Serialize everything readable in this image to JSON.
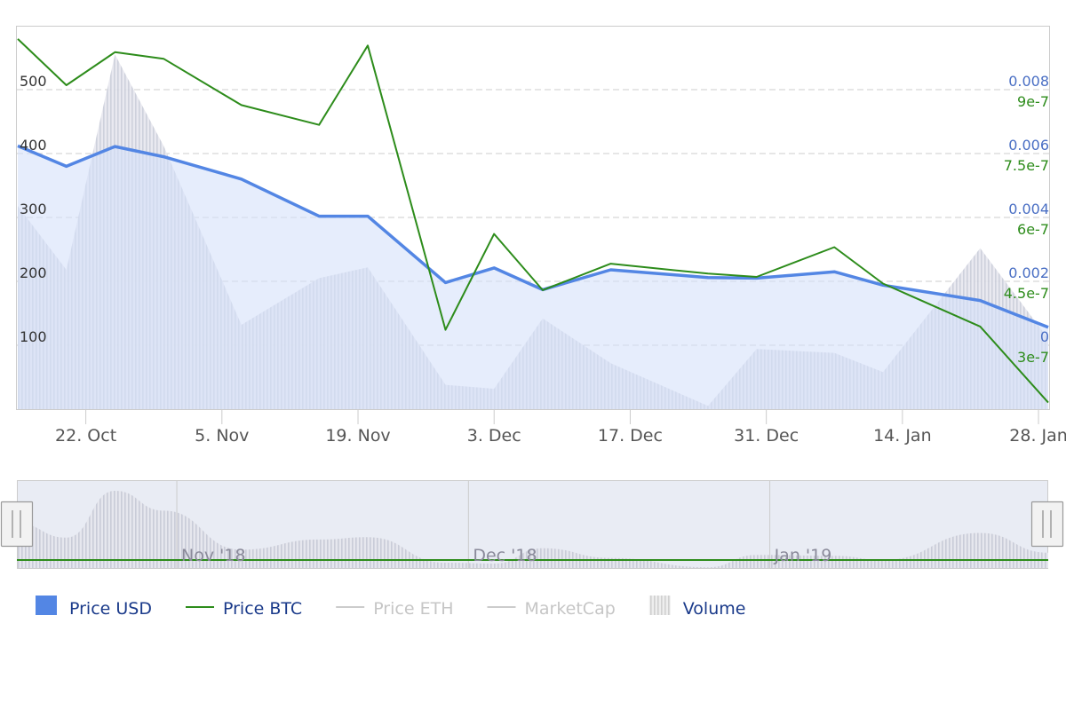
{
  "chart_data": {
    "type": "line",
    "x": [
      "2018-10-15",
      "2018-10-20",
      "2018-10-25",
      "2018-10-30",
      "2018-11-07",
      "2018-11-15",
      "2018-11-20",
      "2018-11-28",
      "2018-12-03",
      "2018-12-08",
      "2018-12-15",
      "2018-12-25",
      "2018-12-30",
      "2019-01-07",
      "2019-01-12",
      "2019-01-22",
      "2019-01-29"
    ],
    "series": [
      {
        "name": "Price USD",
        "type": "area",
        "axis": "usd",
        "color": "#5386e4",
        "values": [
          412,
          380,
          411,
          395,
          360,
          302,
          302,
          198,
          221,
          187,
          218,
          206,
          205,
          215,
          194,
          170,
          128
        ]
      },
      {
        "name": "Price BTC",
        "type": "line",
        "axis": "btc",
        "color": "#2d8c1b",
        "values": [
          1.06e-06,
          9.9e-07,
          1.04e-06,
          1.03e-06,
          9.6e-07,
          9.3e-07,
          1.05e-06,
          6.2e-07,
          7.65e-07,
          6.8e-07,
          7.2e-07,
          7.05e-07,
          7e-07,
          7.45e-07,
          6.9e-07,
          6.25e-07,
          5.1e-07
        ]
      },
      {
        "name": "Volume",
        "type": "area",
        "axis": "volume",
        "color": "#d8dbe4",
        "values": [
          318,
          218,
          555,
          412,
          132,
          205,
          222,
          38,
          32,
          142,
          72,
          5,
          94,
          88,
          58,
          252,
          110
        ]
      }
    ],
    "axes": {
      "usd": {
        "ticks": [
          "100",
          "200",
          "300",
          "400",
          "500"
        ],
        "range": [
          0,
          600
        ]
      },
      "usd_btc_ratio": {
        "ticks": [
          "0",
          "0.002",
          "0.004",
          "0.006",
          "0.008"
        ],
        "range": [
          -0.002,
          0.01
        ],
        "color": "#4a6fc4"
      },
      "btc": {
        "ticks": [
          "3e-7",
          "4.5e-7",
          "6e-7",
          "7.5e-7",
          "9e-7"
        ],
        "range": [
          5e-07,
          1.08e-06
        ],
        "color": "#2d8c1b"
      },
      "volume": {
        "range": [
          0,
          600
        ]
      }
    },
    "x_ticks": [
      "22. Oct",
      "5. Nov",
      "19. Nov",
      "3. Dec",
      "17. Dec",
      "31. Dec",
      "14. Jan",
      "28. Jan"
    ],
    "x_tick_dates": [
      "2018-10-22",
      "2018-11-05",
      "2018-11-19",
      "2018-12-03",
      "2018-12-17",
      "2018-12-31",
      "2019-01-14",
      "2019-01-28"
    ],
    "navigator": {
      "labels": [
        "Nov '18",
        "Dec '18",
        "Jan '19"
      ],
      "label_dates": [
        "2018-11-01",
        "2018-12-01",
        "2019-01-01"
      ]
    },
    "grid": true,
    "legend_position": "bottom-left",
    "legend": [
      {
        "name": "Price USD",
        "symbol": "square",
        "color": "#5386e4",
        "enabled": true
      },
      {
        "name": "Price BTC",
        "symbol": "line",
        "color": "#2d8c1b",
        "enabled": true
      },
      {
        "name": "Price ETH",
        "symbol": "line",
        "color": "#cccccc",
        "enabled": false
      },
      {
        "name": "MarketCap",
        "symbol": "line",
        "color": "#cccccc",
        "enabled": false
      },
      {
        "name": "Volume",
        "symbol": "hatched",
        "color": "#cccccc",
        "enabled": true
      }
    ]
  }
}
